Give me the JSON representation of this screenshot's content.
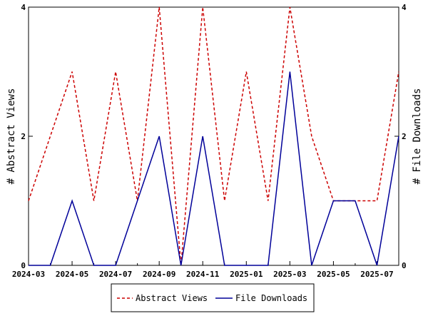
{
  "chart_data": {
    "type": "line",
    "title": "",
    "xlabel": "",
    "ylabel_left": "# Abstract Views",
    "ylabel_right": "# File Downloads",
    "ylim_left": [
      0,
      4
    ],
    "ylim_right": [
      0,
      4
    ],
    "yticks_left": [
      "0",
      "2",
      "4"
    ],
    "yticks_right": [
      "0",
      "2",
      "4"
    ],
    "x": [
      "2024-03",
      "2024-04",
      "2024-05",
      "2024-06",
      "2024-07",
      "2024-08",
      "2024-09",
      "2024-10",
      "2024-11",
      "2024-12",
      "2025-01",
      "2025-02",
      "2025-03",
      "2025-04",
      "2025-05",
      "2025-06",
      "2025-07",
      "2025-08"
    ],
    "xticks": [
      "2024-03",
      "2024-05",
      "2024-07",
      "2024-09",
      "2024-11",
      "2025-01",
      "2025-03",
      "2025-05",
      "2025-07"
    ],
    "grid": false,
    "legend_position": "bottom-center",
    "series": [
      {
        "name": "Abstract Views",
        "color": "#cc0000",
        "dash": "dashed",
        "axis": "left",
        "values": [
          1,
          2,
          3,
          1,
          3,
          1,
          4,
          0,
          4,
          1,
          3,
          1,
          4,
          2,
          1,
          1,
          1,
          3
        ]
      },
      {
        "name": "File Downloads",
        "color": "#000099",
        "dash": "solid",
        "axis": "right",
        "values": [
          0,
          0,
          1,
          0,
          0,
          1,
          2,
          0,
          2,
          0,
          0,
          0,
          3,
          0,
          1,
          1,
          0,
          2
        ]
      }
    ]
  }
}
